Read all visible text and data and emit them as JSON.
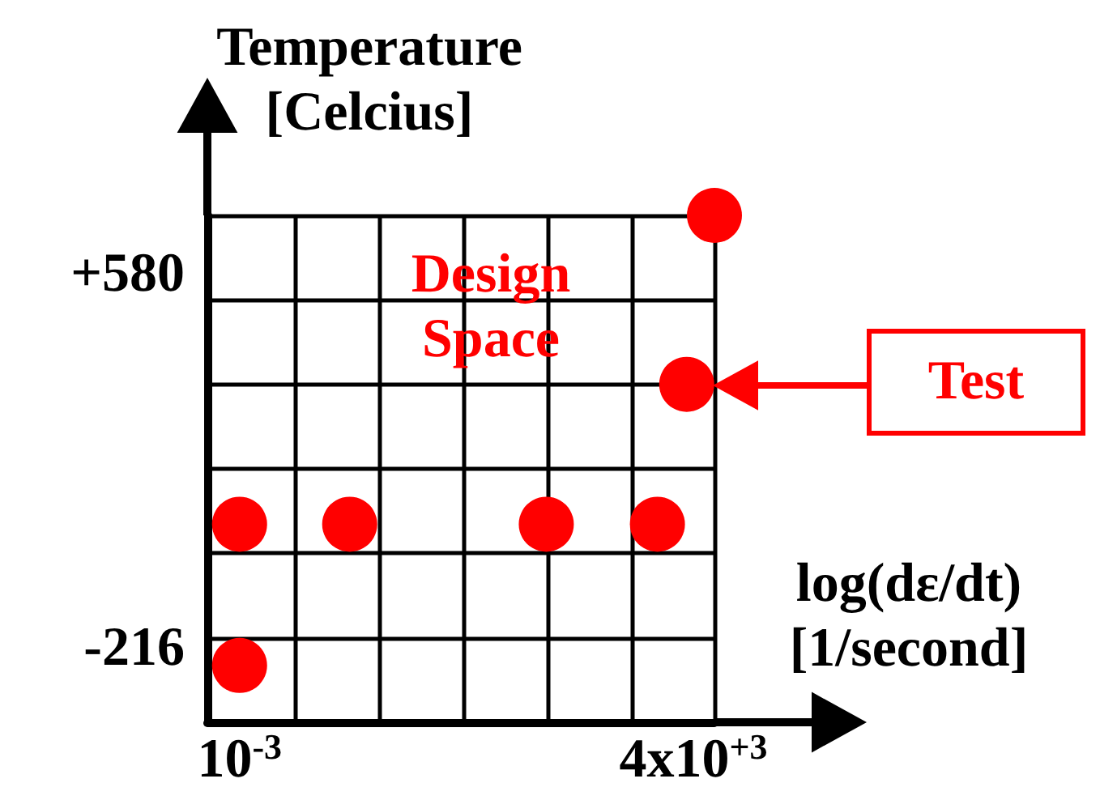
{
  "chart_data": {
    "type": "scatter",
    "ylabel": "Temperature [Celcius]",
    "xlabel": "log(dε/dt) [1/second]",
    "x": [
      0.001,
      0.04,
      29,
      1200,
      0.001,
      3200,
      8100
    ],
    "values": [
      47,
      47,
      47,
      47,
      -254,
      345,
      705
    ],
    "color": "#ff0000",
    "marker": "circle",
    "log": "x",
    "grid": true,
    "xlim": [
      0.00034,
      8100
    ],
    "xticks": [
      {
        "value": 0.001,
        "label": "10$^{-3}$"
      },
      {
        "value": 0.0063,
        "label": null
      },
      {
        "value": 0.11,
        "label": null
      },
      {
        "value": 1.8,
        "label": null
      },
      {
        "value": 30,
        "label": null
      },
      {
        "value": 510,
        "label": null
      },
      {
        "value": 4000,
        "label": "4x10$^{+3}$"
      },
      {
        "value": 8100,
        "label": null
      }
    ],
    "ylim": [
      -375,
      705
    ],
    "yticks": [
      -216,
      {
        "value": -195,
        "label": null
      },
      {
        "value": -15,
        "label": null
      },
      {
        "value": 165,
        "label": null
      },
      {
        "value": 345,
        "label": null
      },
      {
        "value": 525,
        "label": null
      },
      {
        "value": 580,
        "label": "+580"
      },
      {
        "value": 705,
        "label": null
      }
    ],
    "annotations": [
      "Design Space",
      "Test"
    ]
  }
}
